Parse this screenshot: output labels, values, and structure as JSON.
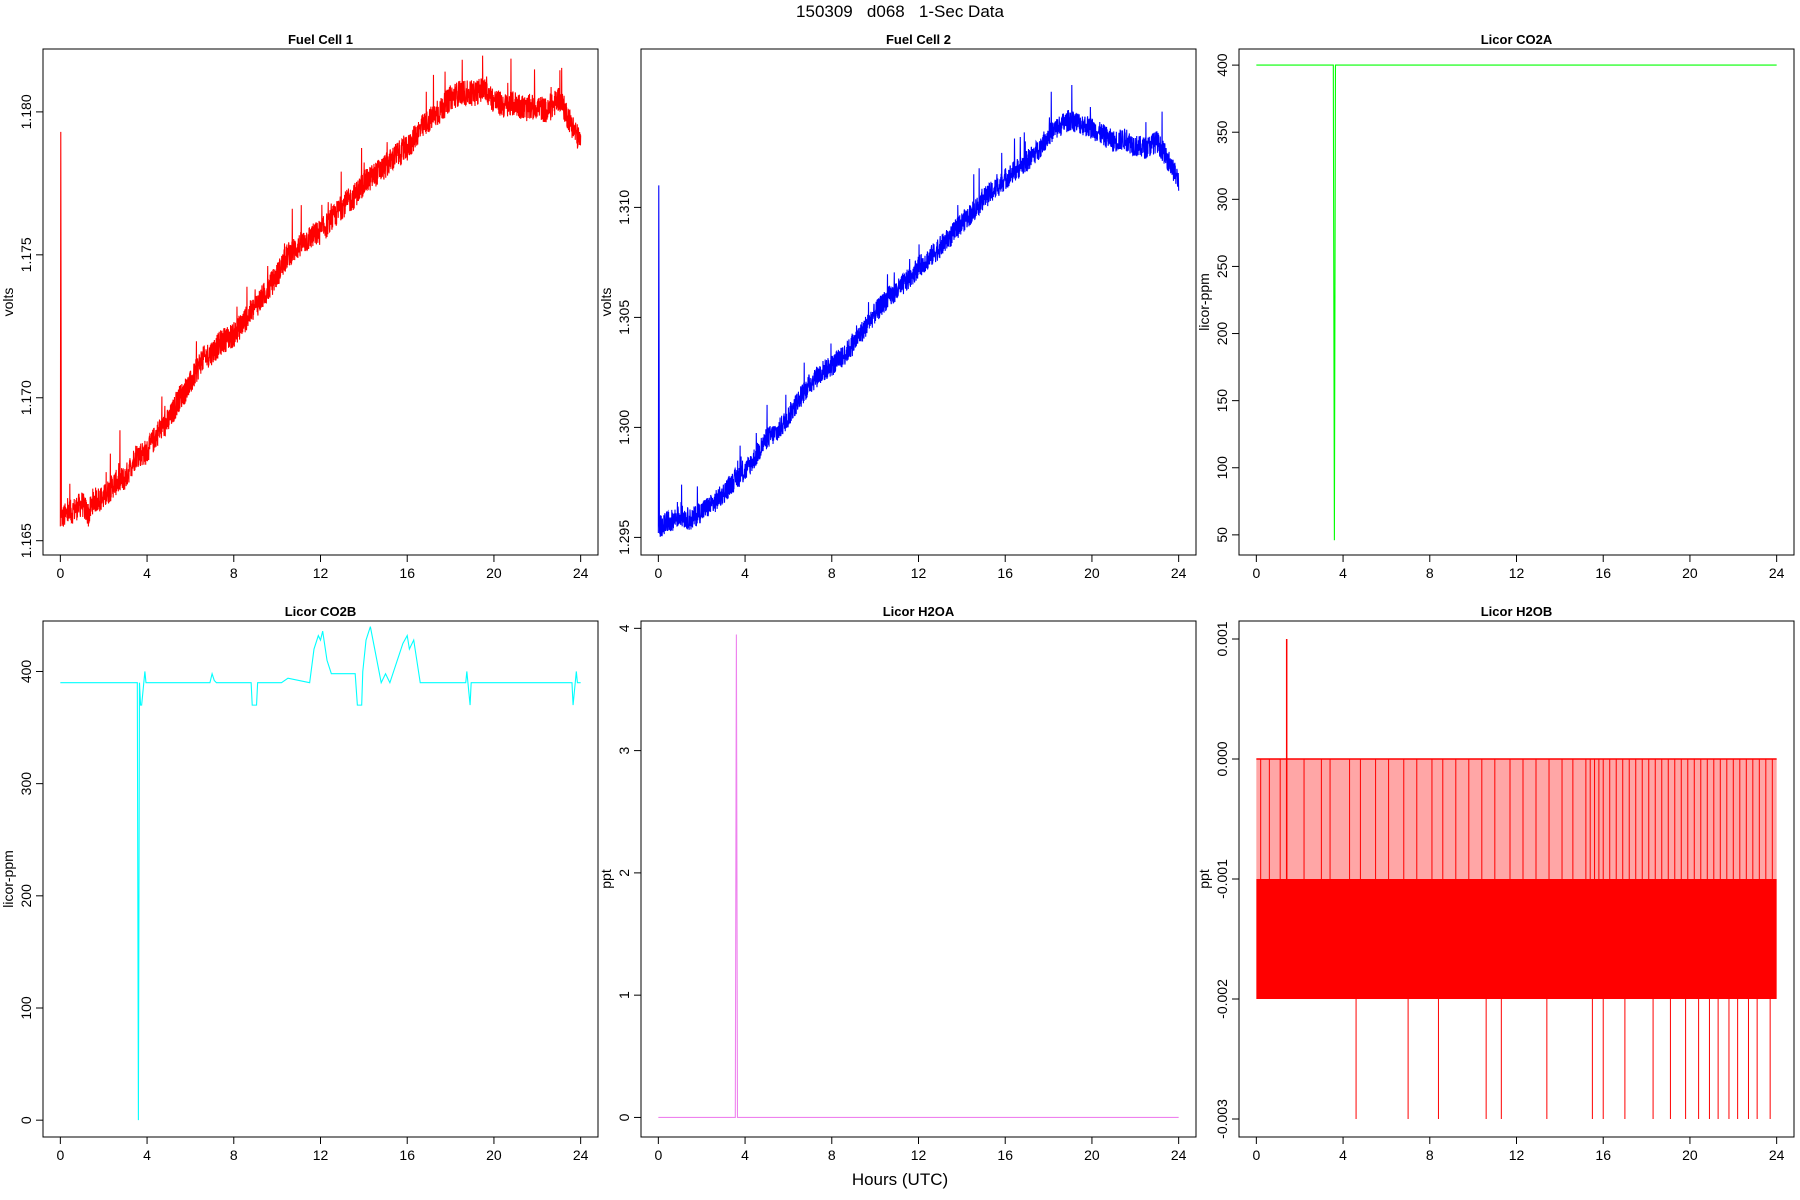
{
  "figure": {
    "title": "150309   d068   1-Sec Data",
    "xlabel": "Hours (UTC)"
  },
  "chart_data": [
    {
      "id": "fuel-cell-1",
      "type": "line",
      "title": "Fuel Cell 1",
      "ylabel": "volts",
      "color": "#ff0000",
      "xlim": [
        -0.8,
        24.8
      ],
      "ylim": [
        1.1645,
        1.1822
      ],
      "xticks": [
        0,
        4,
        8,
        12,
        16,
        20,
        24
      ],
      "yticks": [
        1.165,
        1.17,
        1.175,
        1.18
      ],
      "ytick_labels": [
        "1.165",
        "1.170",
        "1.175",
        "1.180"
      ],
      "x": [
        0,
        0.02,
        0.05,
        0.5,
        1.0,
        1.3,
        1.5,
        2.0,
        2.5,
        3.0,
        3.5,
        4.0,
        4.5,
        5.0,
        5.5,
        6.0,
        6.5,
        7.0,
        7.5,
        8.0,
        8.5,
        9.0,
        9.5,
        10.0,
        10.5,
        11.0,
        11.5,
        12.0,
        12.5,
        13.0,
        13.5,
        14.0,
        14.5,
        15.0,
        15.5,
        16.0,
        16.5,
        17.0,
        17.5,
        18.0,
        18.5,
        19.0,
        19.5,
        20.0,
        20.5,
        21.0,
        21.5,
        22.0,
        22.5,
        23.0,
        23.5,
        24.0
      ],
      "y": [
        1.1655,
        1.1793,
        1.1658,
        1.166,
        1.1663,
        1.1659,
        1.1664,
        1.1665,
        1.167,
        1.1672,
        1.168,
        1.1681,
        1.1688,
        1.1692,
        1.17,
        1.1705,
        1.1713,
        1.1716,
        1.172,
        1.1722,
        1.1727,
        1.1732,
        1.1737,
        1.1743,
        1.175,
        1.1753,
        1.1756,
        1.1758,
        1.1762,
        1.1767,
        1.177,
        1.1775,
        1.1778,
        1.1781,
        1.1785,
        1.1787,
        1.1793,
        1.1797,
        1.18,
        1.1805,
        1.1807,
        1.1806,
        1.1808,
        1.1804,
        1.1802,
        1.1803,
        1.1801,
        1.1802,
        1.18,
        1.1805,
        1.1797,
        1.1789
      ],
      "noise": 0.00045
    },
    {
      "id": "fuel-cell-2",
      "type": "line",
      "title": "Fuel Cell 2",
      "ylabel": "volts",
      "color": "#0000ff",
      "xlim": [
        -0.8,
        24.8
      ],
      "ylim": [
        1.2942,
        1.3172
      ],
      "xticks": [
        0,
        4,
        8,
        12,
        16,
        20,
        24
      ],
      "yticks": [
        1.295,
        1.3,
        1.305,
        1.31
      ],
      "ytick_labels": [
        "1.295",
        "1.300",
        "1.305",
        "1.310"
      ],
      "x": [
        0,
        0.02,
        0.05,
        0.5,
        1.0,
        1.5,
        2.0,
        2.5,
        3.0,
        3.5,
        4.0,
        4.5,
        5.0,
        5.5,
        6.0,
        6.5,
        7.0,
        7.5,
        8.0,
        8.5,
        9.0,
        9.5,
        10.0,
        10.5,
        11.0,
        11.5,
        12.0,
        12.5,
        13.0,
        13.5,
        14.0,
        14.5,
        15.0,
        15.5,
        16.0,
        16.5,
        17.0,
        17.5,
        18.0,
        18.5,
        19.0,
        19.5,
        20.0,
        20.5,
        21.0,
        21.5,
        22.0,
        22.5,
        23.0,
        23.5,
        24.0
      ],
      "y": [
        1.2952,
        1.311,
        1.2955,
        1.2957,
        1.296,
        1.2958,
        1.2962,
        1.2965,
        1.297,
        1.2976,
        1.298,
        1.2987,
        1.2995,
        1.2998,
        1.3005,
        1.3013,
        1.302,
        1.3025,
        1.3028,
        1.3032,
        1.3038,
        1.3045,
        1.3052,
        1.3058,
        1.3062,
        1.3067,
        1.3073,
        1.3077,
        1.3082,
        1.3087,
        1.3093,
        1.3098,
        1.3104,
        1.3108,
        1.3113,
        1.3117,
        1.3121,
        1.3126,
        1.3133,
        1.3137,
        1.314,
        1.3138,
        1.3136,
        1.3133,
        1.313,
        1.3131,
        1.3128,
        1.3127,
        1.313,
        1.3122,
        1.3112
      ],
      "noise": 0.0005
    },
    {
      "id": "licor-co2a",
      "type": "line",
      "title": "Licor CO2A",
      "ylabel": "licor-ppm",
      "color": "#00ff00",
      "xlim": [
        -0.8,
        24.8
      ],
      "ylim": [
        35,
        412
      ],
      "xticks": [
        0,
        4,
        8,
        12,
        16,
        20,
        24
      ],
      "yticks": [
        50,
        100,
        150,
        200,
        250,
        300,
        350,
        400
      ],
      "ytick_labels": [
        "50",
        "100",
        "150",
        "200",
        "250",
        "300",
        "350",
        "400"
      ],
      "x": [
        0,
        3.55,
        3.6,
        3.65,
        24
      ],
      "y": [
        400,
        400,
        46,
        400,
        400
      ],
      "noise": 0
    },
    {
      "id": "licor-co2b",
      "type": "line",
      "title": "Licor CO2B",
      "ylabel": "licor-ppm",
      "color": "#00ffff",
      "xlim": [
        -0.8,
        24.8
      ],
      "ylim": [
        -15,
        445
      ],
      "xticks": [
        0,
        4,
        8,
        12,
        16,
        20,
        24
      ],
      "yticks": [
        0,
        100,
        200,
        300,
        400
      ],
      "ytick_labels": [
        "0",
        "100",
        "200",
        "300",
        "400"
      ],
      "x": [
        0,
        3.5,
        3.55,
        3.6,
        3.65,
        3.7,
        3.75,
        3.9,
        3.95,
        4.1,
        4.15,
        6.9,
        7.0,
        7.1,
        7.2,
        8.8,
        8.85,
        9.05,
        9.1,
        10.2,
        10.5,
        11.5,
        11.7,
        11.9,
        12.0,
        12.1,
        12.3,
        12.5,
        13.6,
        13.7,
        13.9,
        13.95,
        14.1,
        14.3,
        14.5,
        14.8,
        15.0,
        15.2,
        15.8,
        16.0,
        16.1,
        16.3,
        16.6,
        16.7,
        18.7,
        18.75,
        18.9,
        18.95,
        23.6,
        23.65,
        23.8,
        23.85,
        24
      ],
      "y": [
        390,
        390,
        390,
        0,
        390,
        370,
        370,
        400,
        390,
        390,
        390,
        390,
        398,
        392,
        390,
        390,
        370,
        370,
        390,
        390,
        394,
        390,
        420,
        432,
        428,
        436,
        410,
        398,
        398,
        370,
        370,
        400,
        428,
        440,
        420,
        390,
        398,
        390,
        425,
        432,
        420,
        428,
        390,
        390,
        390,
        400,
        370,
        390,
        390,
        370,
        400,
        390,
        390
      ],
      "noise": 0
    },
    {
      "id": "licor-h2oa",
      "type": "line",
      "title": "Licor H2OA",
      "ylabel": "ppt",
      "color": "#ee82ee",
      "xlim": [
        -0.8,
        24.8
      ],
      "ylim": [
        -0.16,
        4.06
      ],
      "xticks": [
        0,
        4,
        8,
        12,
        16,
        20,
        24
      ],
      "yticks": [
        0,
        1,
        2,
        3,
        4
      ],
      "ytick_labels": [
        "0",
        "1",
        "2",
        "3",
        "4"
      ],
      "x": [
        0,
        3.55,
        3.6,
        3.65,
        24
      ],
      "y": [
        0,
        0,
        3.95,
        0,
        0
      ],
      "noise": 0
    },
    {
      "id": "licor-h2ob",
      "type": "line",
      "title": "Licor H2OB",
      "ylabel": "ppt",
      "color": "#ff0000",
      "xlim": [
        -0.8,
        24.8
      ],
      "ylim": [
        -0.00315,
        0.00115
      ],
      "xticks": [
        0,
        4,
        8,
        12,
        16,
        20,
        24
      ],
      "yticks": [
        -0.003,
        -0.002,
        -0.001,
        0.0,
        0.001
      ],
      "ytick_labels": [
        "-0.003",
        "-0.002",
        "-0.001",
        "0.000",
        "0.001"
      ],
      "band": {
        "x": [
          0,
          24
        ],
        "y": [
          -0.002,
          -0.001
        ]
      },
      "spikes_high": [
        1.4
      ],
      "spikes_zero": [
        0.2,
        0.6,
        1.1,
        2.2,
        3.0,
        3.4,
        4.3,
        4.8,
        5.5,
        6.1,
        6.8,
        7.4,
        8.1,
        8.6,
        9.2,
        9.8,
        10.4,
        11.0,
        11.7,
        12.3,
        12.9,
        13.5,
        14.1,
        14.6,
        15.2,
        15.4,
        15.6,
        15.8,
        16.0,
        16.3,
        16.6,
        16.9,
        17.2,
        17.5,
        17.8,
        18.1,
        18.4,
        18.7,
        19.0,
        19.3,
        19.6,
        19.9,
        20.2,
        20.5,
        20.8,
        21.1,
        21.4,
        21.7,
        22.0,
        22.3,
        22.6,
        22.9,
        23.2,
        23.5,
        23.8
      ],
      "spikes_low": [
        4.6,
        7.0,
        8.4,
        10.6,
        11.3,
        13.4,
        15.5,
        16.0,
        17.0,
        18.3,
        19.1,
        19.8,
        20.4,
        20.9,
        21.3,
        21.8,
        22.2,
        22.7,
        23.1,
        23.7
      ]
    }
  ]
}
